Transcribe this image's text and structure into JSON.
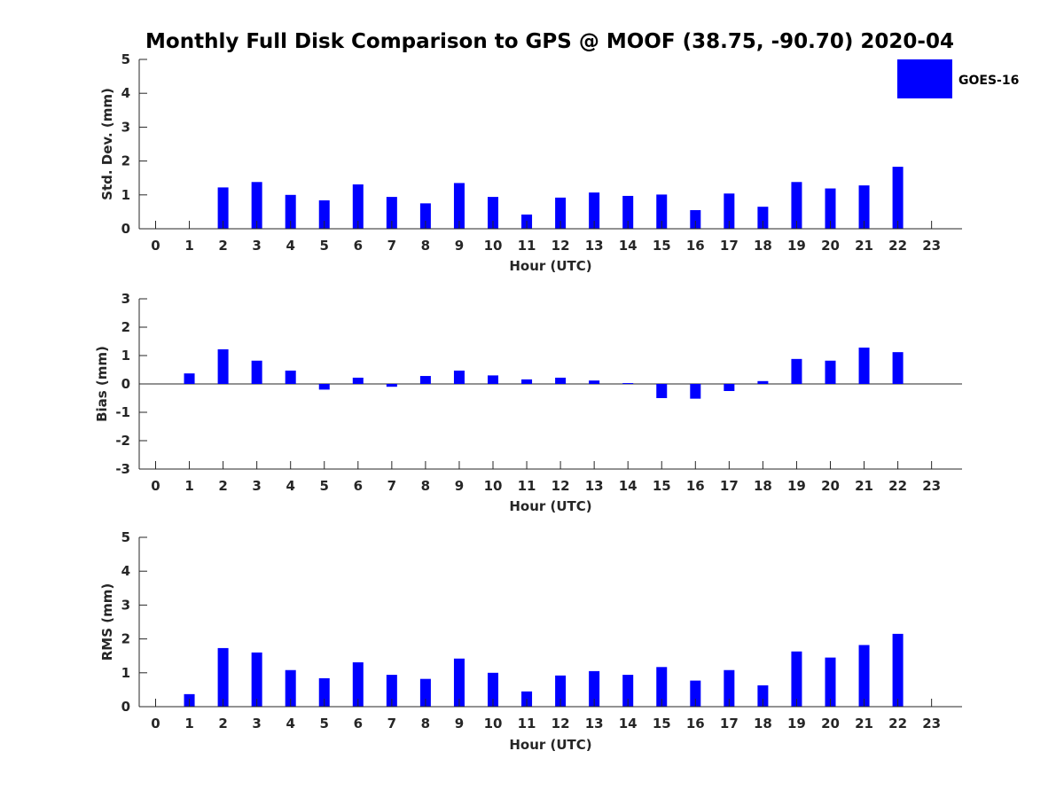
{
  "title": "Monthly Full Disk Comparison to GPS @ MOOF (38.75, -90.70) 2020-04",
  "legend": {
    "label": "GOES-16",
    "color": "#0000ff"
  },
  "bar_color": "#0000ff",
  "chart_data": [
    {
      "type": "bar",
      "name": "std-dev",
      "categories": [
        0,
        1,
        2,
        3,
        4,
        5,
        6,
        7,
        8,
        9,
        10,
        11,
        12,
        13,
        14,
        15,
        16,
        17,
        18,
        19,
        20,
        21,
        22,
        23
      ],
      "values": [
        null,
        null,
        1.22,
        1.38,
        1.0,
        0.84,
        1.31,
        0.94,
        0.75,
        1.35,
        0.94,
        0.42,
        0.92,
        1.07,
        0.97,
        1.01,
        0.55,
        1.04,
        0.65,
        1.38,
        1.19,
        1.28,
        1.83,
        null
      ],
      "xlabel": "Hour (UTC)",
      "ylabel": "Std. Dev. (mm)",
      "ylim": [
        0,
        5
      ],
      "yticks": [
        0,
        1,
        2,
        3,
        4,
        5
      ],
      "series_name": "GOES-16"
    },
    {
      "type": "bar",
      "name": "bias",
      "categories": [
        0,
        1,
        2,
        3,
        4,
        5,
        6,
        7,
        8,
        9,
        10,
        11,
        12,
        13,
        14,
        15,
        16,
        17,
        18,
        19,
        20,
        21,
        22,
        23
      ],
      "values": [
        null,
        0.37,
        1.22,
        0.82,
        0.47,
        -0.2,
        0.22,
        -0.1,
        0.28,
        0.47,
        0.3,
        0.16,
        0.22,
        0.12,
        0.03,
        -0.5,
        -0.52,
        -0.25,
        0.1,
        0.88,
        0.82,
        1.28,
        1.12,
        null
      ],
      "xlabel": "Hour (UTC)",
      "ylabel": "Bias (mm)",
      "ylim": [
        -3,
        3
      ],
      "yticks": [
        -3,
        -2,
        -1,
        0,
        1,
        2,
        3
      ],
      "zero_line": true,
      "series_name": "GOES-16"
    },
    {
      "type": "bar",
      "name": "rms",
      "categories": [
        0,
        1,
        2,
        3,
        4,
        5,
        6,
        7,
        8,
        9,
        10,
        11,
        12,
        13,
        14,
        15,
        16,
        17,
        18,
        19,
        20,
        21,
        22,
        23
      ],
      "values": [
        null,
        0.37,
        1.73,
        1.6,
        1.08,
        0.84,
        1.31,
        0.94,
        0.82,
        1.42,
        1.0,
        0.45,
        0.92,
        1.05,
        0.94,
        1.17,
        0.77,
        1.08,
        0.63,
        1.63,
        1.45,
        1.82,
        2.15,
        null
      ],
      "xlabel": "Hour (UTC)",
      "ylabel": "RMS (mm)",
      "ylim": [
        0,
        5
      ],
      "yticks": [
        0,
        1,
        2,
        3,
        4,
        5
      ],
      "series_name": "GOES-16"
    }
  ]
}
